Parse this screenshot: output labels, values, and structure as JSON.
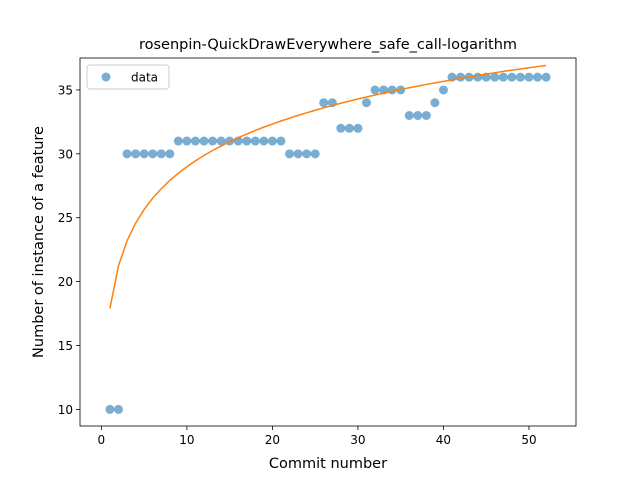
{
  "chart_data": {
    "type": "scatter",
    "title": "rosenpin-QuickDrawEverywhere_safe_call-logarithm",
    "xlabel": "Commit number",
    "ylabel": "Number of instance of a feature",
    "xlim": [
      -2.5,
      55.5
    ],
    "ylim": [
      8.7,
      37.5
    ],
    "xticks": [
      0,
      10,
      20,
      30,
      40,
      50
    ],
    "yticks": [
      10,
      15,
      20,
      25,
      30,
      35
    ],
    "legend": {
      "position": "top-left",
      "entries": [
        "data"
      ]
    },
    "colors": {
      "data": "#1f77b4",
      "fit": "#ff7f0e"
    },
    "series": [
      {
        "name": "data",
        "kind": "scatter",
        "x": [
          1,
          2,
          3,
          4,
          5,
          6,
          7,
          8,
          9,
          10,
          11,
          12,
          13,
          14,
          15,
          16,
          17,
          18,
          19,
          20,
          21,
          22,
          23,
          24,
          25,
          26,
          27,
          28,
          29,
          30,
          31,
          32,
          33,
          34,
          35,
          36,
          37,
          38,
          39,
          40,
          41,
          42,
          43,
          44,
          45,
          46,
          47,
          48,
          49,
          50,
          51,
          52
        ],
        "y": [
          10,
          10,
          30,
          30,
          30,
          30,
          30,
          30,
          31,
          31,
          31,
          31,
          31,
          31,
          31,
          31,
          31,
          31,
          31,
          31,
          31,
          30,
          30,
          30,
          30,
          34,
          34,
          32,
          32,
          32,
          34,
          35,
          35,
          35,
          35,
          33,
          33,
          33,
          34,
          35,
          36,
          36,
          36,
          36,
          36,
          36,
          36,
          36,
          36,
          36,
          36,
          36
        ]
      },
      {
        "kind": "line",
        "x": [
          1,
          2,
          3,
          4,
          5,
          6,
          7,
          8,
          9,
          10,
          11,
          12,
          13,
          14,
          15,
          16,
          17,
          18,
          19,
          20,
          21,
          22,
          23,
          24,
          25,
          26,
          27,
          28,
          29,
          30,
          31,
          32,
          33,
          34,
          35,
          36,
          37,
          38,
          39,
          40,
          41,
          42,
          43,
          44,
          45,
          46,
          47,
          48,
          49,
          50,
          51,
          52
        ],
        "y": [
          17.9,
          21.24,
          23.19,
          24.57,
          25.65,
          26.53,
          27.27,
          27.92,
          28.48,
          28.99,
          29.45,
          29.87,
          30.26,
          30.61,
          30.95,
          31.26,
          31.55,
          31.83,
          32.09,
          32.33,
          32.57,
          32.79,
          33.01,
          33.21,
          33.41,
          33.6,
          33.78,
          33.96,
          34.13,
          34.29,
          34.45,
          34.6,
          34.75,
          34.89,
          35.03,
          35.17,
          35.3,
          35.43,
          35.55,
          35.67,
          35.79,
          35.91,
          36.02,
          36.13,
          36.24,
          36.34,
          36.45,
          36.55,
          36.64,
          36.74,
          36.83,
          36.92
        ]
      }
    ]
  }
}
